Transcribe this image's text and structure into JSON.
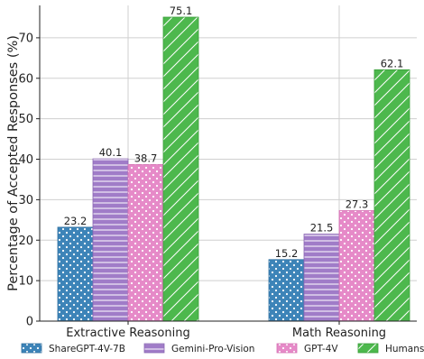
{
  "chart_data": {
    "type": "bar",
    "title": "",
    "xlabel": "",
    "ylabel": "Percentage of Accepted Responses (%)",
    "ylim": [
      0,
      78
    ],
    "yticks": [
      0,
      10,
      20,
      30,
      40,
      50,
      60,
      70
    ],
    "grid": true,
    "legend_position": "bottom",
    "categories": [
      "Extractive Reasoning",
      "Math Reasoning"
    ],
    "series": [
      {
        "name": "ShareGPT-4V-7B",
        "values": [
          23.2,
          15.2
        ],
        "color": "#3d84b8",
        "pattern": "dots"
      },
      {
        "name": "Gemini-Pro-Vision",
        "values": [
          40.1,
          21.5
        ],
        "color": "#a07cc8",
        "pattern": "horizontal-lines"
      },
      {
        "name": "GPT-4V",
        "values": [
          38.7,
          27.3
        ],
        "color": "#e68ac8",
        "pattern": "dots"
      },
      {
        "name": "Humans",
        "values": [
          75.1,
          62.1
        ],
        "color": "#4db84d",
        "pattern": "diagonal-lines"
      }
    ],
    "value_labels": [
      [
        "23.2",
        "15.2"
      ],
      [
        "40.1",
        "21.5"
      ],
      [
        "38.7",
        "27.3"
      ],
      [
        "75.1",
        "62.1"
      ]
    ]
  }
}
